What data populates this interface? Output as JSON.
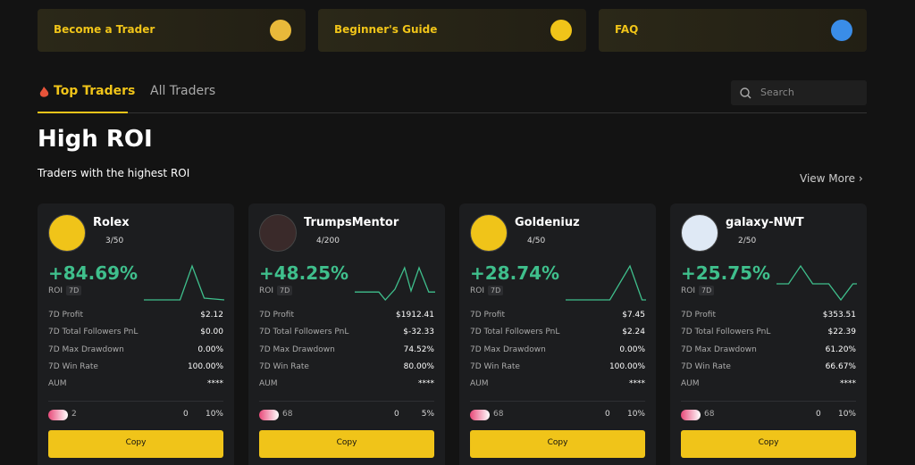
{
  "top_links": [
    "Become a Trader",
    "Beginner's Guide",
    "FAQ"
  ],
  "tabs": [
    "Top Traders",
    "All Traders"
  ],
  "search_placeholder": "Search",
  "section": {
    "title": "High ROI",
    "subtitle": "Traders with the highest ROI",
    "view_more": "View More"
  },
  "traders": [
    {
      "name": "Rolex",
      "followers": "3/50",
      "roi": "+84.69%",
      "roi_label": "ROI",
      "period": "7D",
      "stats": [
        [
          "7D Profit",
          "$2.12"
        ],
        [
          "7D Total Followers PnL",
          "$0.00"
        ],
        [
          "7D Max Drawdown",
          "0.00%"
        ],
        [
          "7D Win Rate",
          "100.00%"
        ],
        [
          "AUM",
          "****"
        ]
      ],
      "copiers": "2",
      "comments": "0",
      "share": "10%",
      "button": "Copy"
    },
    {
      "name": "TrumpsMentor",
      "followers": "4/200",
      "roi": "+48.25%",
      "roi_label": "ROI",
      "period": "7D",
      "stats": [
        [
          "7D Profit",
          "$1912.41"
        ],
        [
          "7D Total Followers PnL",
          "$-32.33"
        ],
        [
          "7D Max Drawdown",
          "74.52%"
        ],
        [
          "7D Win Rate",
          "80.00%"
        ],
        [
          "AUM",
          "****"
        ]
      ],
      "copiers": "68",
      "comments": "0",
      "share": "5%",
      "button": "Copy"
    },
    {
      "name": "Goldeniuz",
      "followers": "4/50",
      "roi": "+28.74%",
      "roi_label": "ROI",
      "period": "7D",
      "stats": [
        [
          "7D Profit",
          "$7.45"
        ],
        [
          "7D Total Followers PnL",
          "$2.24"
        ],
        [
          "7D Max Drawdown",
          "0.00%"
        ],
        [
          "7D Win Rate",
          "100.00%"
        ],
        [
          "AUM",
          "****"
        ]
      ],
      "copiers": "68",
      "comments": "0",
      "share": "10%",
      "button": "Copy"
    },
    {
      "name": "galaxy-NWT",
      "followers": "2/50",
      "roi": "+25.75%",
      "roi_label": "ROI",
      "period": "7D",
      "stats": [
        [
          "7D Profit",
          "$353.51"
        ],
        [
          "7D Total Followers PnL",
          "$22.39"
        ],
        [
          "7D Max Drawdown",
          "61.20%"
        ],
        [
          "7D Win Rate",
          "66.67%"
        ],
        [
          "AUM",
          "****"
        ]
      ],
      "copiers": "68",
      "comments": "0",
      "share": "10%",
      "button": "Copy"
    }
  ]
}
